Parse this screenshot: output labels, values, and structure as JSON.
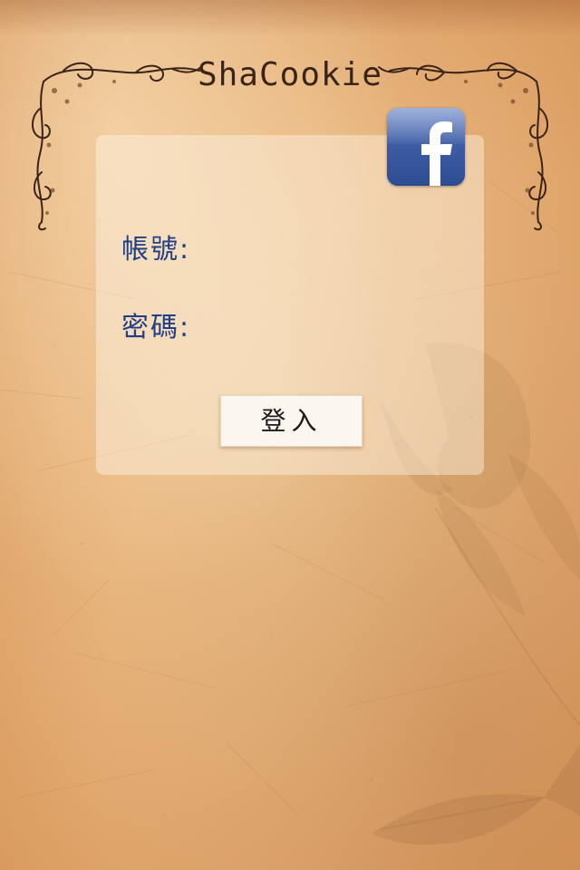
{
  "header": {
    "app_title": "ShaCookie"
  },
  "social": {
    "facebook_icon": "facebook-f-icon",
    "brand_color": "#3b5998"
  },
  "login_form": {
    "account_label": "帳號:",
    "password_label": "密碼:",
    "account_value": "",
    "password_value": "",
    "submit_label": "登入"
  },
  "theme": {
    "label_color": "#1f3f86",
    "paper_color": "#e6b27a",
    "ink_color": "#3a2418"
  }
}
